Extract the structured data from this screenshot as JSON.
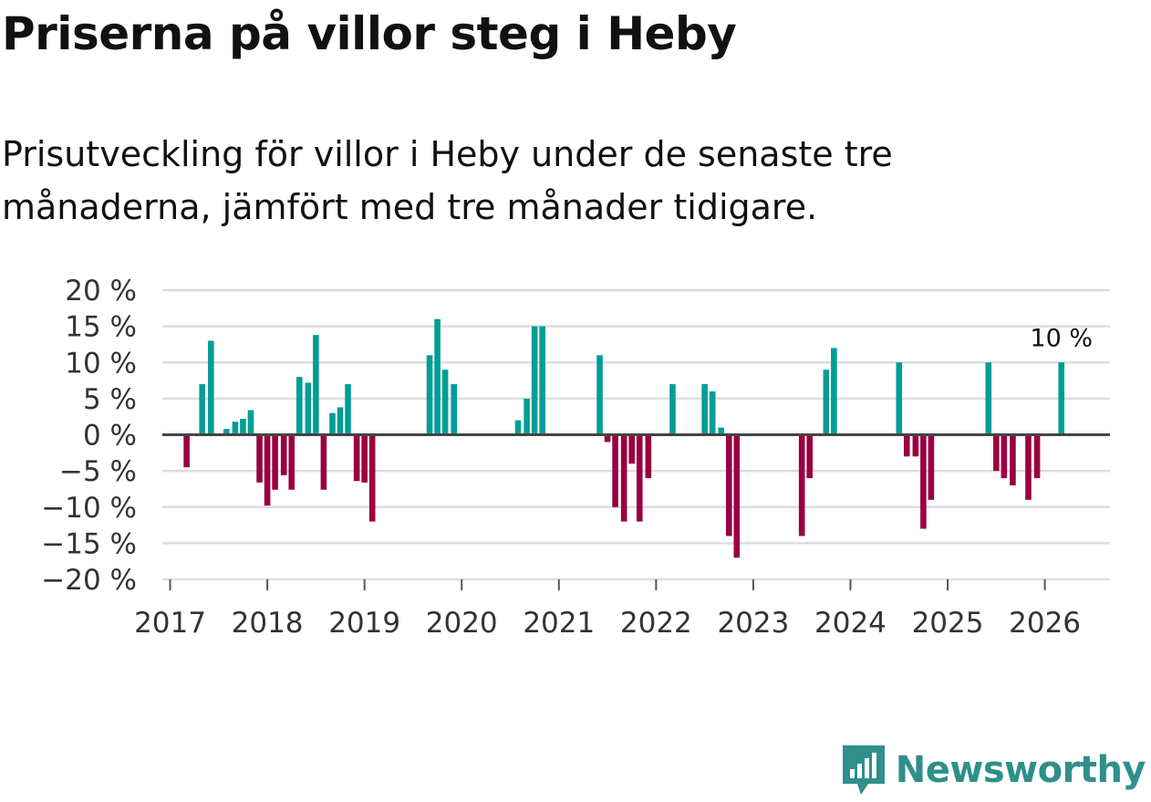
{
  "header": {
    "title": "Priserna på villor steg i Heby",
    "subtitle": "Prisutveckling för villor i Heby under de senaste tre månaderna, jämfört med tre månader tidigare."
  },
  "brand": {
    "name": "Newsworthy",
    "icon": "newsworthy-logo-icon"
  },
  "colors": {
    "positive": "#009e96",
    "negative": "#9a0041",
    "grid": "#dddddd",
    "zero_line": "#444444",
    "brand": "#2e8f8b"
  },
  "chart_data": {
    "type": "bar",
    "title": "Priserna på villor steg i Heby",
    "xlabel": "",
    "ylabel": "",
    "unit": "%",
    "ylim": [
      -20,
      20
    ],
    "yticks": [
      20,
      15,
      10,
      5,
      0,
      -5,
      -10,
      -15,
      -20
    ],
    "ytick_labels": [
      "20 %",
      "15 %",
      "10 %",
      "5 %",
      "0 %",
      "−5 %",
      "−10 %",
      "−15 %",
      "−20 %"
    ],
    "xlim": [
      2016.92,
      2026.67
    ],
    "xticks": [
      2017,
      2018,
      2019,
      2020,
      2021,
      2022,
      2023,
      2024,
      2025,
      2026
    ],
    "xtick_labels": [
      "2017",
      "2018",
      "2019",
      "2020",
      "2021",
      "2022",
      "2023",
      "2024",
      "2025",
      "2026"
    ],
    "annotation": {
      "text": "10 %",
      "x": 2026.17,
      "y": 10
    },
    "series": [
      {
        "name": "Prisutveckling",
        "points": [
          {
            "x": 2017.17,
            "y": -4.5
          },
          {
            "x": 2017.33,
            "y": 7
          },
          {
            "x": 2017.42,
            "y": 13
          },
          {
            "x": 2017.58,
            "y": 0.8
          },
          {
            "x": 2017.67,
            "y": 1.8
          },
          {
            "x": 2017.75,
            "y": 2.2
          },
          {
            "x": 2017.83,
            "y": 3.4
          },
          {
            "x": 2017.92,
            "y": -6.6
          },
          {
            "x": 2018.0,
            "y": -9.8
          },
          {
            "x": 2018.08,
            "y": -7.6
          },
          {
            "x": 2018.17,
            "y": -5.6
          },
          {
            "x": 2018.25,
            "y": -7.6
          },
          {
            "x": 2018.33,
            "y": 8
          },
          {
            "x": 2018.42,
            "y": 7.2
          },
          {
            "x": 2018.5,
            "y": 13.8
          },
          {
            "x": 2018.58,
            "y": -7.6
          },
          {
            "x": 2018.67,
            "y": 3
          },
          {
            "x": 2018.75,
            "y": 3.8
          },
          {
            "x": 2018.83,
            "y": 7
          },
          {
            "x": 2018.92,
            "y": -6.4
          },
          {
            "x": 2019.0,
            "y": -6.6
          },
          {
            "x": 2019.08,
            "y": -12
          },
          {
            "x": 2019.67,
            "y": 11
          },
          {
            "x": 2019.75,
            "y": 16
          },
          {
            "x": 2019.83,
            "y": 9
          },
          {
            "x": 2019.92,
            "y": 7
          },
          {
            "x": 2020.58,
            "y": 2
          },
          {
            "x": 2020.67,
            "y": 5
          },
          {
            "x": 2020.75,
            "y": 15
          },
          {
            "x": 2020.83,
            "y": 15
          },
          {
            "x": 2021.42,
            "y": 11
          },
          {
            "x": 2021.5,
            "y": -1
          },
          {
            "x": 2021.58,
            "y": -10
          },
          {
            "x": 2021.67,
            "y": -12
          },
          {
            "x": 2021.75,
            "y": -4
          },
          {
            "x": 2021.83,
            "y": -12
          },
          {
            "x": 2021.92,
            "y": -6
          },
          {
            "x": 2022.17,
            "y": 7
          },
          {
            "x": 2022.5,
            "y": 7
          },
          {
            "x": 2022.58,
            "y": 6
          },
          {
            "x": 2022.67,
            "y": 1
          },
          {
            "x": 2022.75,
            "y": -14
          },
          {
            "x": 2022.83,
            "y": -17
          },
          {
            "x": 2023.5,
            "y": -14
          },
          {
            "x": 2023.58,
            "y": -6
          },
          {
            "x": 2023.75,
            "y": 9
          },
          {
            "x": 2023.83,
            "y": 12
          },
          {
            "x": 2024.5,
            "y": 10
          },
          {
            "x": 2024.58,
            "y": -3
          },
          {
            "x": 2024.67,
            "y": -3
          },
          {
            "x": 2024.75,
            "y": -13
          },
          {
            "x": 2024.83,
            "y": -9
          },
          {
            "x": 2025.42,
            "y": 10
          },
          {
            "x": 2025.5,
            "y": -5
          },
          {
            "x": 2025.58,
            "y": -6
          },
          {
            "x": 2025.67,
            "y": -7
          },
          {
            "x": 2025.83,
            "y": -9
          },
          {
            "x": 2025.92,
            "y": -6
          },
          {
            "x": 2026.17,
            "y": 10
          }
        ]
      }
    ]
  }
}
